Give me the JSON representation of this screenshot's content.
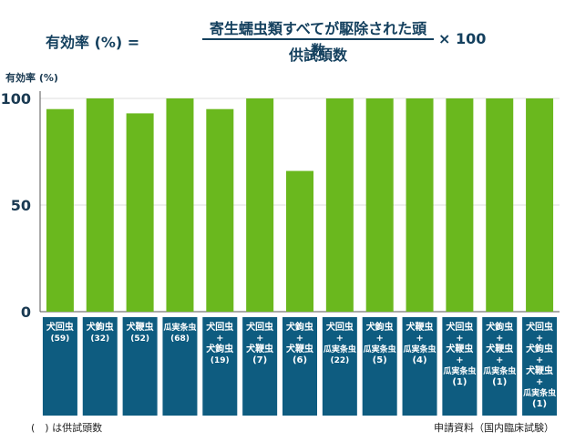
{
  "formula": {
    "left": "有効率 (%) =",
    "numerator": "寄生蠕虫類すべてが駆除された頭数",
    "denominator": "供試頭数",
    "right": "× 100"
  },
  "colors": {
    "bar": "#6ab81e",
    "label_box": "#0e5c80",
    "grid": "#dddddd",
    "axis": "#555555"
  },
  "chart_data": {
    "type": "bar",
    "ylabel": "有効率 (%)",
    "ylim": [
      0,
      100
    ],
    "yticks": [
      0,
      50,
      100
    ],
    "grid": true,
    "categories": [
      [
        "犬回虫",
        "(59)"
      ],
      [
        "犬鉤虫",
        "(32)"
      ],
      [
        "犬鞭虫",
        "(52)"
      ],
      [
        "瓜実条虫",
        "(68)"
      ],
      [
        "犬回虫",
        "+",
        "犬鉤虫",
        "(19)"
      ],
      [
        "犬回虫",
        "+",
        "犬鞭虫",
        "(7)"
      ],
      [
        "犬鉤虫",
        "+",
        "犬鞭虫",
        "(6)"
      ],
      [
        "犬回虫",
        "+",
        "瓜実条虫",
        "(22)"
      ],
      [
        "犬鉤虫",
        "+",
        "瓜実条虫",
        "(5)"
      ],
      [
        "犬鞭虫",
        "+",
        "瓜実条虫",
        "(4)"
      ],
      [
        "犬回虫",
        "+",
        "犬鞭虫",
        "+",
        "瓜実条虫",
        "(1)"
      ],
      [
        "犬鉤虫",
        "+",
        "犬鞭虫",
        "+",
        "瓜実条虫",
        "(1)"
      ],
      [
        "犬回虫",
        "+",
        "犬鉤虫",
        "+",
        "犬鞭虫",
        "+",
        "瓜実条虫",
        "(1)"
      ]
    ],
    "values": [
      95,
      100,
      93,
      100,
      95,
      100,
      66,
      100,
      100,
      100,
      100,
      100,
      100
    ]
  },
  "footnotes": {
    "left": "(　) は供試頭数",
    "right": "申請資料（国内臨床試験）"
  }
}
